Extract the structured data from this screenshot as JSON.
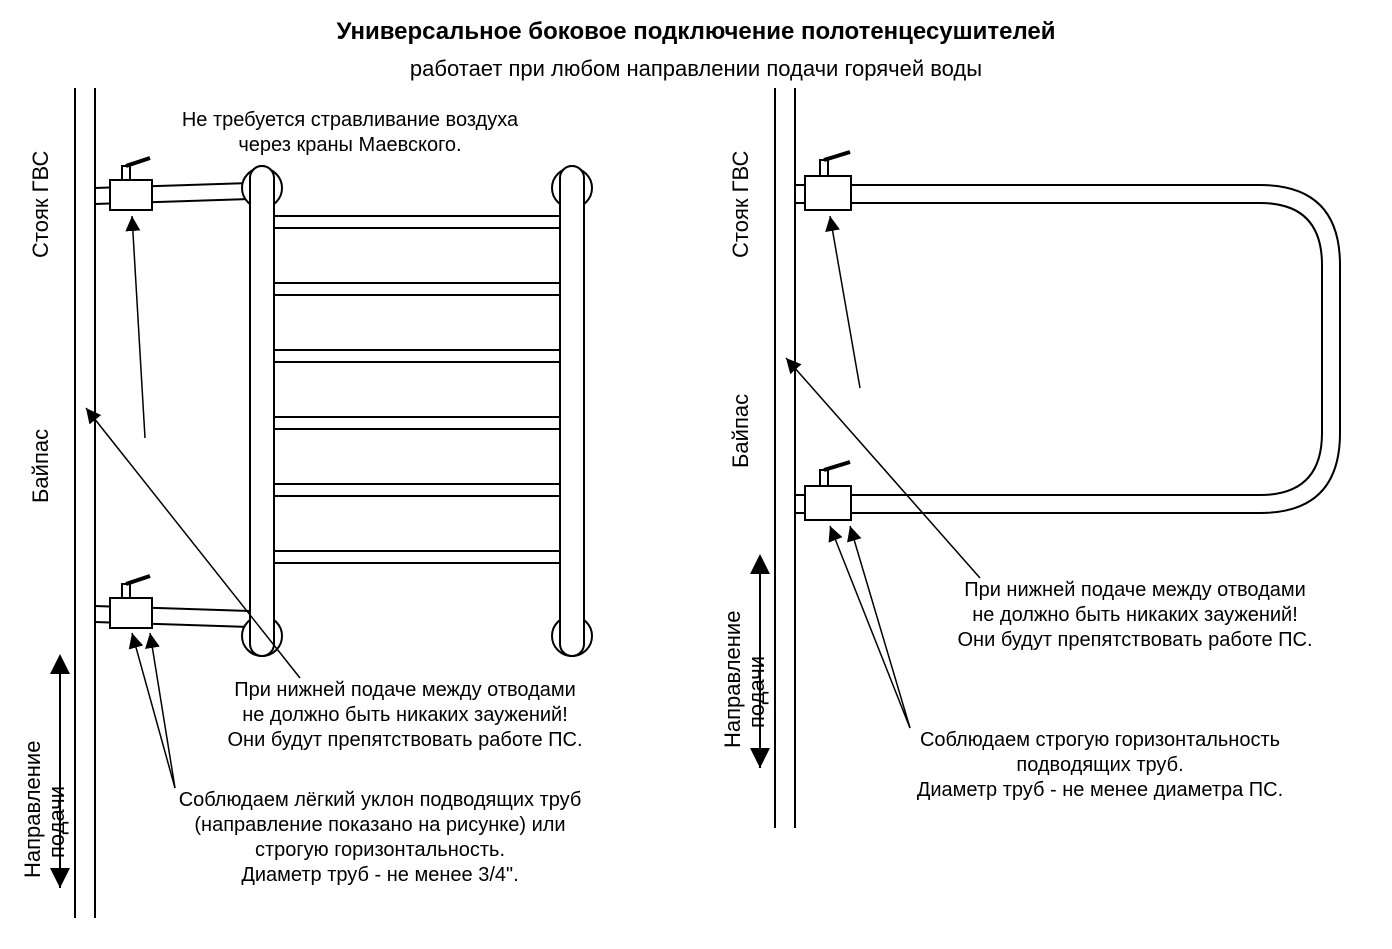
{
  "title": "Универсальное боковое подключение полотенцесушителей",
  "subtitle": "работает при любом направлении подачи горячей воды",
  "labels": {
    "riser": "Стояк ГВС",
    "bypass": "Байпас",
    "flow_direction": "Направление",
    "flow_direction2": "подачи"
  },
  "left": {
    "topNote": "Не требуется стравливание воздуха\nчерез краны Маевского.",
    "midNote": "При нижней подаче между отводами\nне должно быть никаких заужений!\nОни будут препятствовать работе ПС.",
    "bottomNote": "Соблюдаем лёгкий уклон подводящих труб\n(направление показано на рисунке) или\nстрогую горизонтальность.\nДиаметр труб - не менее 3/4\"."
  },
  "right": {
    "midNote": "При нижней подаче между отводами\nне должно быть никаких заужений!\nОни будут препятствовать работе ПС.",
    "bottomNote": "Соблюдаем строгую горизонтальность\nподводящих труб.\nДиаметр труб - не менее диаметра ПС."
  },
  "style": {
    "stroke": "#000000",
    "strokeWidth": 2,
    "background": "#ffffff"
  }
}
